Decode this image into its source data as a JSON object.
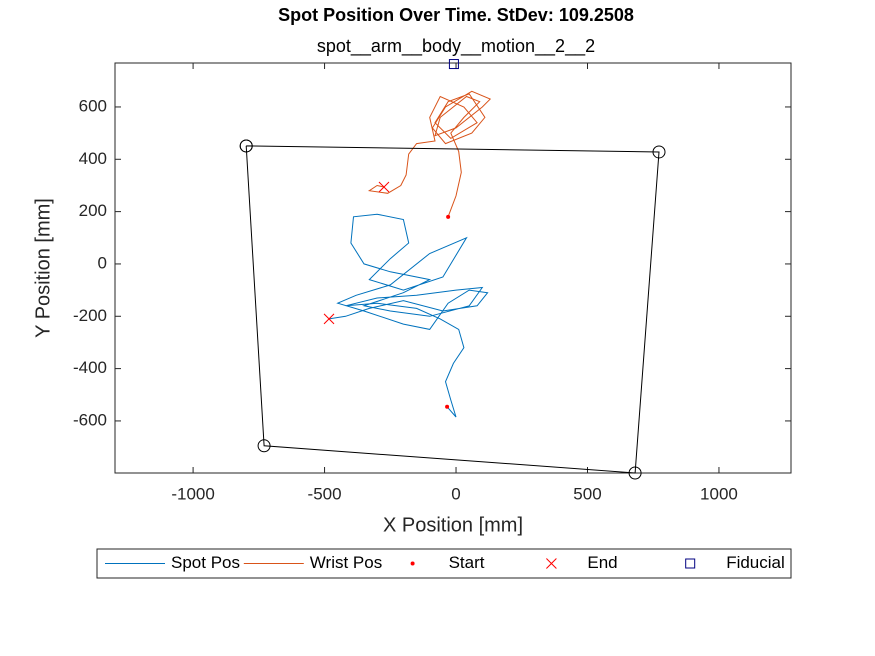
{
  "chart_data": {
    "type": "line",
    "title": "Spot Position Over Time. StDev: 109.2508",
    "subtitle": "spot__arm__body__motion__2__2",
    "x_label": "X Position [mm]",
    "y_label": "Y Position [mm]",
    "xlim": [
      -1297,
      1274
    ],
    "ylim": [
      -799,
      768
    ],
    "xticks": [
      -1000,
      -500,
      0,
      500,
      1000
    ],
    "yticks": [
      -600,
      -400,
      -200,
      0,
      200,
      400,
      600
    ],
    "grid": false,
    "legend": "bottom",
    "series": [
      {
        "name": "Spot Pos",
        "color": "#0072BD",
        "marker": "none",
        "line": true,
        "x": [
          -34,
          0,
          -20,
          -40,
          -10,
          30,
          10,
          -60,
          -150,
          -300,
          -420,
          -300,
          -150,
          0,
          100,
          50,
          -100,
          -250,
          -350,
          -200,
          -100,
          -250,
          -350,
          -400,
          -390,
          -300,
          -200,
          -180,
          -250,
          -330,
          -200,
          -50,
          40,
          -100,
          -250,
          -380,
          -450,
          -350,
          -200,
          -100,
          -30,
          50,
          120,
          80,
          -50,
          -200,
          -330,
          -420,
          -483
        ],
        "values": [
          -546,
          -585,
          -520,
          -450,
          -380,
          -320,
          -250,
          -210,
          -170,
          -150,
          -160,
          -130,
          -120,
          -100,
          -90,
          -160,
          -200,
          -180,
          -160,
          -110,
          -60,
          -30,
          0,
          80,
          180,
          190,
          170,
          80,
          20,
          -60,
          -100,
          -50,
          100,
          40,
          -80,
          -120,
          -150,
          -180,
          -230,
          -250,
          -150,
          -100,
          -110,
          -160,
          -180,
          -140,
          -170,
          -200,
          -210
        ]
      },
      {
        "name": "Wrist Pos",
        "color": "#D95319",
        "marker": "none",
        "line": true,
        "x": [
          -30,
          0,
          20,
          10,
          -20,
          30,
          90,
          40,
          -60,
          -80,
          0,
          100,
          130,
          60,
          -40,
          -90,
          -40,
          60,
          110,
          50,
          -30,
          -80,
          -20,
          80,
          30,
          -60,
          -100,
          -80,
          -150,
          -180,
          -190,
          -210,
          -260,
          -330,
          -300,
          -274
        ],
        "values": [
          180,
          260,
          350,
          430,
          500,
          560,
          620,
          640,
          560,
          490,
          520,
          600,
          630,
          660,
          600,
          520,
          460,
          500,
          560,
          650,
          620,
          540,
          480,
          540,
          600,
          640,
          560,
          470,
          460,
          420,
          340,
          300,
          270,
          280,
          300,
          294
        ]
      },
      {
        "name": "Start",
        "color": "#FF0000",
        "marker": "dot",
        "line": false,
        "x": [
          -34,
          -30
        ],
        "values": [
          -546,
          180
        ]
      },
      {
        "name": "End",
        "color": "#FF0000",
        "marker": "x",
        "line": false,
        "x": [
          -483,
          -274
        ],
        "values": [
          -210,
          294
        ]
      },
      {
        "name": "Fiducial",
        "color": "#000080",
        "marker": "square",
        "line": false,
        "x": [
          -8
        ],
        "values": [
          764
        ]
      },
      {
        "color": "#000000",
        "marker": "circle",
        "line": true,
        "x": [
          -798,
          772,
          681,
          -730,
          -798
        ],
        "values": [
          451,
          428,
          -799,
          -695,
          451
        ]
      }
    ]
  }
}
